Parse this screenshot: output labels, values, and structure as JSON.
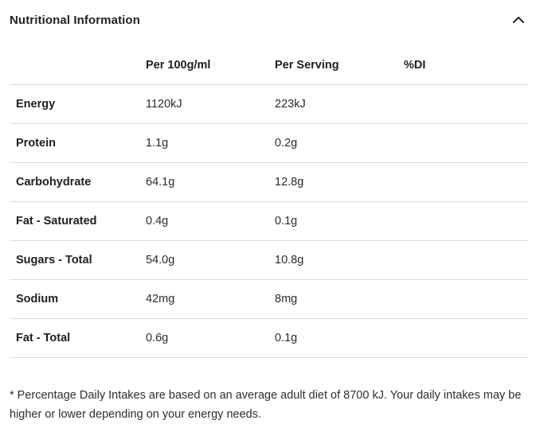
{
  "section": {
    "title": "Nutritional Information",
    "toggle_icon": "chevron-up-icon",
    "expanded": true
  },
  "table": {
    "columns": [
      "",
      "Per 100g/ml",
      "Per Serving",
      "%DI"
    ],
    "rows": [
      {
        "name": "Energy",
        "per_100": "1120kJ",
        "per_serving": "223kJ",
        "di": ""
      },
      {
        "name": "Protein",
        "per_100": "1.1g",
        "per_serving": "0.2g",
        "di": ""
      },
      {
        "name": "Carbohydrate",
        "per_100": "64.1g",
        "per_serving": "12.8g",
        "di": ""
      },
      {
        "name": "Fat - Saturated",
        "per_100": "0.4g",
        "per_serving": "0.1g",
        "di": ""
      },
      {
        "name": "Sugars - Total",
        "per_100": "54.0g",
        "per_serving": "10.8g",
        "di": ""
      },
      {
        "name": "Sodium",
        "per_100": "42mg",
        "per_serving": "8mg",
        "di": ""
      },
      {
        "name": "Fat - Total",
        "per_100": "0.6g",
        "per_serving": "0.1g",
        "di": ""
      }
    ]
  },
  "footnote": "* Percentage Daily Intakes are based on an average adult diet of 8700 kJ. Your daily intakes may be higher or lower depending on your energy needs.",
  "colors": {
    "text": "#1f1f1f",
    "divider": "#dcdcdc",
    "background": "#ffffff"
  }
}
